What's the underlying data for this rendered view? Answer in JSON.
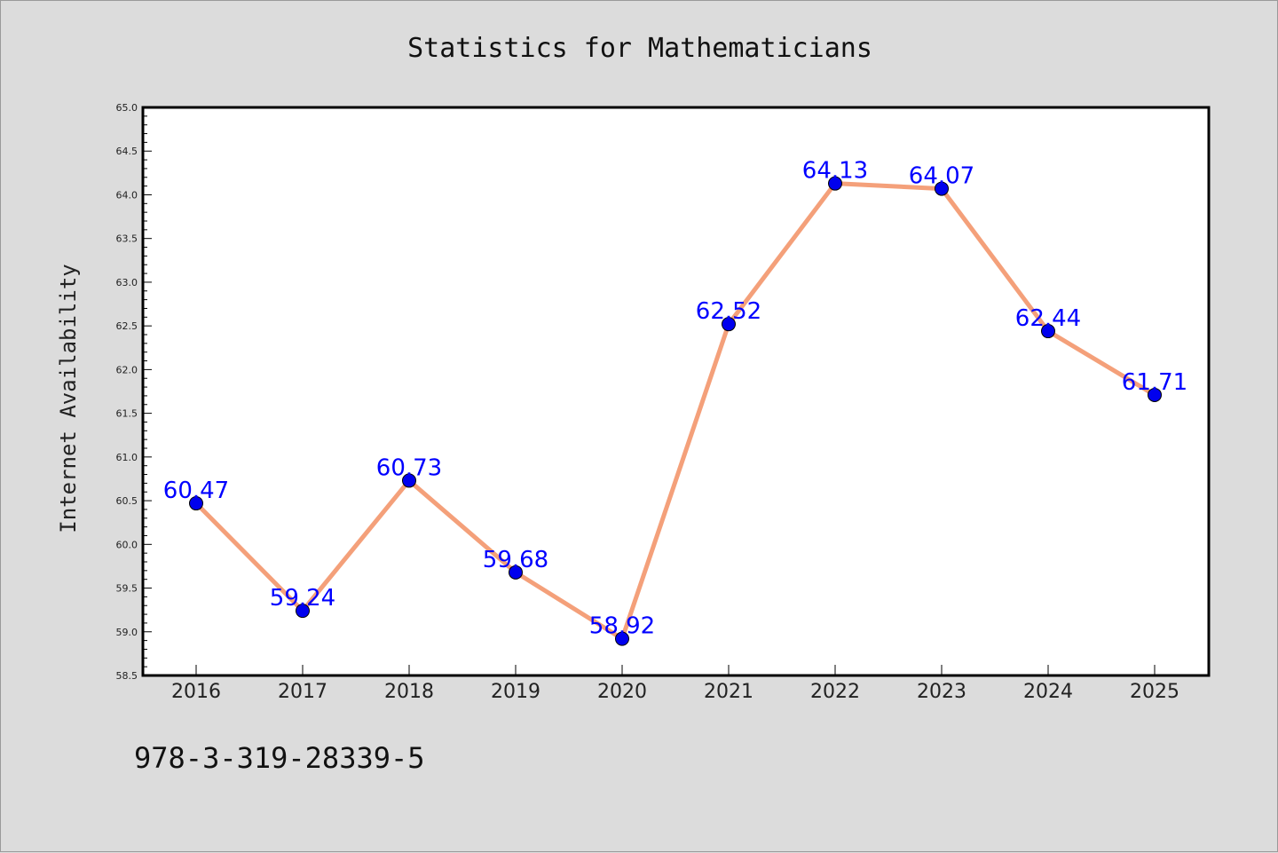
{
  "chart_data": {
    "type": "line",
    "title": "Statistics for Mathematicians",
    "xlabel": "",
    "ylabel": "Internet Availability",
    "x": [
      "2016",
      "2017",
      "2018",
      "2019",
      "2020",
      "2021",
      "2022",
      "2023",
      "2024",
      "2025"
    ],
    "series": [
      {
        "values": [
          60.47,
          59.24,
          60.73,
          59.68,
          58.92,
          62.52,
          64.13,
          64.07,
          62.44,
          61.71
        ],
        "line_color": "#f4a07a",
        "marker_color": "#0000ee"
      }
    ],
    "data_labels": [
      "60.47",
      "59.24",
      "60.73",
      "59.68",
      "58.92",
      "62.52",
      "64.13",
      "64.07",
      "62.44",
      "61.71"
    ],
    "data_label_color": "#0000ff",
    "ylim": [
      58.5,
      65.0
    ],
    "yticks": [
      "58.5",
      "59.0",
      "59.5",
      "60.0",
      "60.5",
      "61.0",
      "61.5",
      "62.0",
      "62.5",
      "63.0",
      "63.5",
      "64.0",
      "64.5",
      "65.0"
    ],
    "grid": false,
    "legend": "none"
  },
  "footer": {
    "isbn": "978-3-319-28339-5"
  },
  "colors": {
    "background": "#dcdcdc",
    "plot_background": "#ffffff"
  }
}
